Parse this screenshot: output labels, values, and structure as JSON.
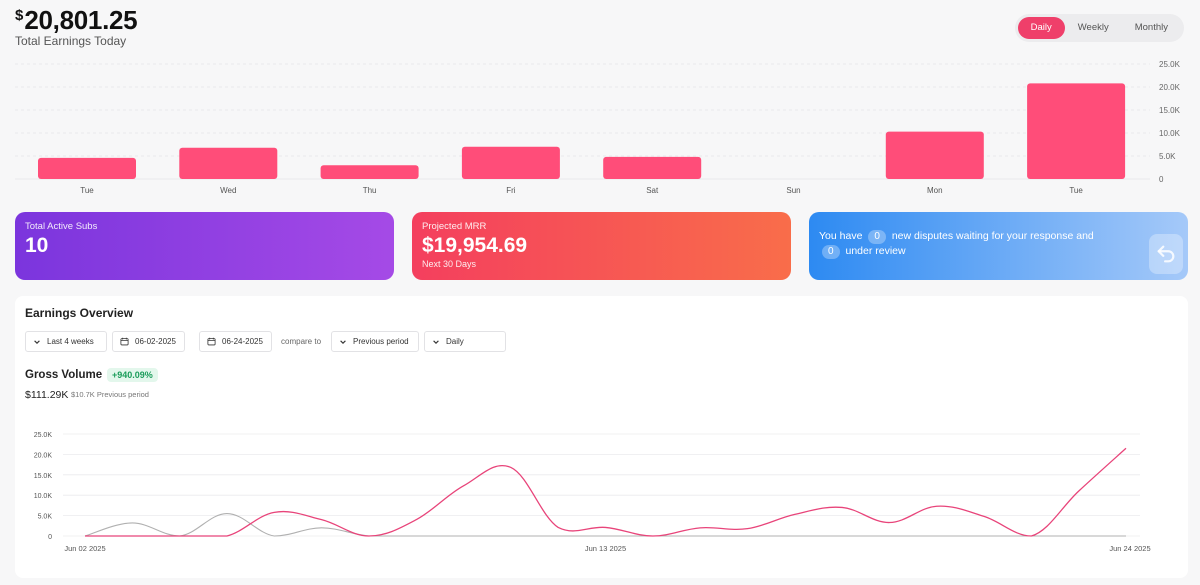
{
  "header": {
    "currency_symbol": "$",
    "total_earnings": "20,801.25",
    "subtitle": "Total Earnings Today"
  },
  "period_toggle": {
    "options": [
      "Daily",
      "Weekly",
      "Monthly"
    ],
    "selected": "Daily"
  },
  "cards": {
    "active_subs": {
      "label": "Total Active Subs",
      "value": "10"
    },
    "projected_mrr": {
      "label": "Projected MRR",
      "value": "$19,954.69",
      "sub": "Next 30 Days"
    },
    "disputes": {
      "text_before": "You have",
      "count_a": "0",
      "text_middle": "new disputes waiting for your response and",
      "count_b": "0",
      "text_after": "under review",
      "icon": "reply-icon"
    }
  },
  "overview": {
    "title": "Earnings Overview",
    "range_select": "Last 4 weeks",
    "start_date": "06-02-2025",
    "date_separator": "-",
    "end_date": "06-24-2025",
    "compare_label": "compare to",
    "compare_select": "Previous period",
    "interval_select": "Daily"
  },
  "gross_volume": {
    "title": "Gross Volume",
    "change": "+940.09%",
    "value": "$111.29K",
    "previous": "$10.7K Previous period"
  },
  "colors": {
    "accent": "#ef3f6a",
    "bar": "#ff4d79",
    "line_current": "#e8447a",
    "line_previous": "#b0b0b0"
  },
  "chart_data": [
    {
      "type": "bar",
      "categories": [
        "Tue",
        "Wed",
        "Thu",
        "Fri",
        "Sat",
        "Sun",
        "Mon",
        "Tue"
      ],
      "values": [
        4600,
        6800,
        3000,
        7000,
        4800,
        0,
        10300,
        20800
      ],
      "ylim": [
        0,
        25000
      ],
      "yticks": [
        "0",
        "5.0K",
        "10.0K",
        "15.0K",
        "20.0K",
        "25.0K"
      ],
      "ytick_values": [
        0,
        5000,
        10000,
        15000,
        20000,
        25000
      ],
      "grid": true
    },
    {
      "type": "line",
      "ylim": [
        0,
        25000
      ],
      "yticks": [
        "0",
        "5.0K",
        "10.0K",
        "15.0K",
        "20.0K",
        "25.0K"
      ],
      "ytick_values": [
        0,
        5000,
        10000,
        15000,
        20000,
        25000
      ],
      "xtick_labels": [
        "Jun 02 2025",
        "Jun 13 2025",
        "Jun 24 2025"
      ],
      "xtick_index": [
        0,
        11,
        22
      ],
      "grid": true,
      "series": [
        {
          "values": [
            0,
            0,
            0,
            0,
            5800,
            4000,
            0,
            4000,
            12300,
            16800,
            2100,
            2100,
            0,
            2000,
            1800,
            5300,
            7000,
            3300,
            7300,
            4800,
            0,
            11000,
            21500
          ]
        },
        {
          "values": [
            0,
            3200,
            0,
            5500,
            0,
            2000,
            0,
            0,
            0,
            0,
            0,
            0,
            0,
            0,
            0,
            0,
            0,
            0,
            0,
            0,
            0,
            0,
            0
          ]
        }
      ]
    }
  ]
}
